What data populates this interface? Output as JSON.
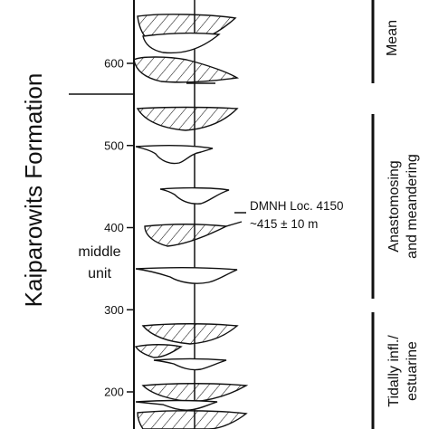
{
  "formation": {
    "title": "Kaiparowits Formation"
  },
  "unit": {
    "line1": "middle",
    "line2": "unit"
  },
  "axis": {
    "ticks": [
      {
        "value": 200,
        "label": "200"
      },
      {
        "value": 300,
        "label": "300"
      },
      {
        "value": 400,
        "label": "400"
      },
      {
        "value": 500,
        "label": "500"
      },
      {
        "value": 600,
        "label": "600"
      }
    ]
  },
  "locality": {
    "name": "DMNH Loc. 4150",
    "height": "~415 ± 10 m",
    "value_m": 415
  },
  "environments": [
    {
      "label": "Mean",
      "from_m": 620,
      "to_m": 695
    },
    {
      "label_line1": "Anastomosing",
      "label_line2": "and meandering",
      "from_m": 315,
      "to_m": 540
    },
    {
      "label_line1": "Tidally infl./",
      "label_line2": "estuarine",
      "from_m": 165,
      "to_m": 290
    }
  ],
  "channel_bodies": [
    {
      "type": "lateral-accretion",
      "height_m": 655
    },
    {
      "type": "lateral-accretion",
      "height_m": 620
    },
    {
      "type": "channel-fill",
      "height_m": 600
    },
    {
      "type": "lateral-accretion",
      "height_m": 535
    },
    {
      "type": "channel-fill",
      "height_m": 494
    },
    {
      "type": "channel-fill",
      "height_m": 442
    },
    {
      "type": "lateral-accretion",
      "height_m": 403
    },
    {
      "type": "channel-fill",
      "height_m": 348
    },
    {
      "type": "lateral-accretion",
      "height_m": 278
    },
    {
      "type": "lateral-accretion",
      "height_m": 257
    },
    {
      "type": "channel-fill",
      "height_m": 240
    },
    {
      "type": "lateral-accretion",
      "height_m": 205
    },
    {
      "type": "channel-fill",
      "height_m": 188
    },
    {
      "type": "lateral-accretion",
      "height_m": 168
    }
  ]
}
